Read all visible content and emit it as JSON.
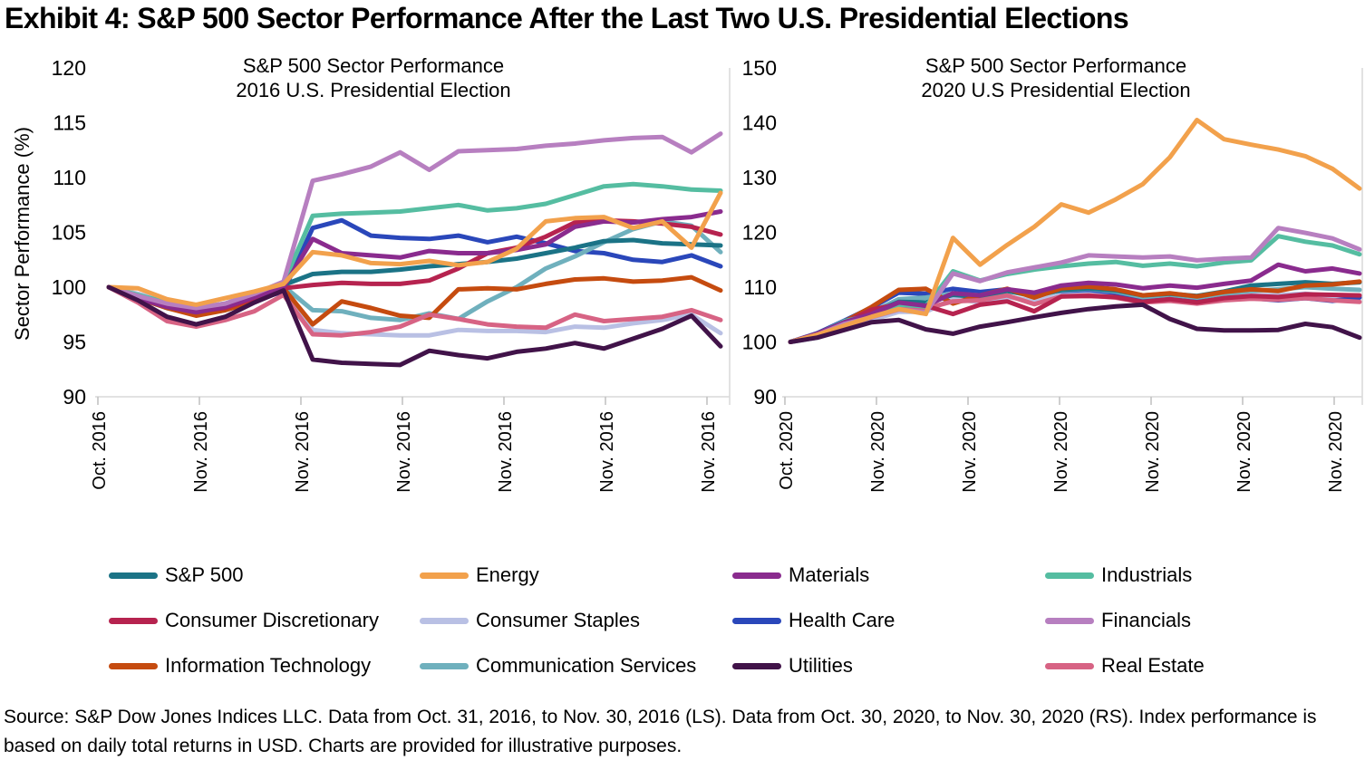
{
  "page_title": "Exhibit 4: S&P 500 Sector Performance After the Last Two U.S. Presidential Elections",
  "y_axis_label": "Sector Performance (%)",
  "source_note": "Source: S&P Dow Jones Indices LLC. Data from Oct. 31, 2016, to Nov. 30, 2016 (LS). Data from Oct. 30, 2020, to Nov. 30, 2020 (RS). Index performance is based on daily total returns in USD. Charts are provided for illustrative purposes.",
  "colors": {
    "sp500": "#1b7386",
    "energy": "#f2a14c",
    "materials": "#8a2b8e",
    "industrials": "#55bda1",
    "consumer_discretionary": "#b6234f",
    "consumer_staples": "#b9c0e4",
    "health_care": "#2a47ba",
    "financials": "#b77fc0",
    "information_technology": "#c54b0f",
    "communication_services": "#6fb0bd",
    "utilities": "#411349",
    "real_estate": "#d76384"
  },
  "legend": {
    "items": [
      {
        "key": "sp500",
        "label": "S&P 500"
      },
      {
        "key": "energy",
        "label": "Energy"
      },
      {
        "key": "materials",
        "label": "Materials"
      },
      {
        "key": "industrials",
        "label": "Industrials"
      },
      {
        "key": "consumer_discretionary",
        "label": "Consumer Discretionary"
      },
      {
        "key": "consumer_staples",
        "label": "Consumer Staples"
      },
      {
        "key": "health_care",
        "label": "Health Care"
      },
      {
        "key": "financials",
        "label": "Financials"
      },
      {
        "key": "information_technology",
        "label": "Information Technology"
      },
      {
        "key": "communication_services",
        "label": "Communication Services"
      },
      {
        "key": "utilities",
        "label": "Utilities"
      },
      {
        "key": "real_estate",
        "label": "Real Estate"
      }
    ]
  },
  "chart_data": [
    {
      "type": "line",
      "title_line1": "S&P 500 Sector Performance",
      "title_line2": "2016 U.S. Presidential Election",
      "ylim": [
        90,
        120
      ],
      "yticks": [
        120,
        115,
        110,
        105,
        100,
        95,
        90
      ],
      "grid": false,
      "legend_position": "bottom",
      "x_tick_labels": [
        "Oct. 2016",
        "Nov. 2016",
        "Nov. 2016",
        "Nov. 2016",
        "Nov. 2016",
        "Nov. 2016",
        "Nov. 2016"
      ],
      "series": [
        {
          "key": "sp500",
          "name": "S&P 500",
          "values": [
            100,
            99.2,
            98.6,
            98.2,
            98.4,
            99.5,
            100.2,
            101.2,
            101.4,
            101.4,
            101.6,
            101.9,
            102.1,
            102.3,
            102.6,
            103.1,
            103.6,
            104.2,
            104.3,
            104.0,
            103.9,
            103.8
          ]
        },
        {
          "key": "energy",
          "name": "Energy",
          "values": [
            100,
            99.9,
            98.9,
            98.4,
            99.0,
            99.6,
            100.3,
            103.2,
            102.9,
            102.2,
            102.1,
            102.4,
            102.0,
            102.3,
            103.5,
            106.0,
            106.3,
            106.4,
            105.4,
            106.0,
            103.6,
            108.6
          ]
        },
        {
          "key": "materials",
          "name": "Materials",
          "values": [
            100,
            99.0,
            98.2,
            97.7,
            98.2,
            99.1,
            100.0,
            104.4,
            103.1,
            102.9,
            102.7,
            103.3,
            103.1,
            103.1,
            103.4,
            103.9,
            105.5,
            106.0,
            105.9,
            106.2,
            106.4,
            106.9
          ]
        },
        {
          "key": "industrials",
          "name": "Industrials",
          "values": [
            100,
            99.3,
            98.6,
            98.1,
            98.5,
            99.4,
            100.4,
            106.5,
            106.7,
            106.8,
            106.9,
            107.2,
            107.5,
            107.0,
            107.2,
            107.6,
            108.4,
            109.2,
            109.4,
            109.2,
            108.9,
            108.8
          ]
        },
        {
          "key": "consumer_discretionary",
          "name": "Consumer Discretionary",
          "values": [
            100,
            99.1,
            98.3,
            97.8,
            98.1,
            99.0,
            99.9,
            100.2,
            100.4,
            100.3,
            100.3,
            100.6,
            101.7,
            103.1,
            103.6,
            104.6,
            105.9,
            106.1,
            106.0,
            105.8,
            105.5,
            104.8
          ]
        },
        {
          "key": "consumer_staples",
          "name": "Consumer Staples",
          "values": [
            100,
            99.4,
            98.7,
            98.0,
            98.4,
            99.2,
            99.8,
            96.1,
            95.8,
            95.7,
            95.6,
            95.6,
            96.1,
            96.0,
            96.0,
            95.9,
            96.4,
            96.3,
            96.7,
            97.0,
            97.5,
            95.8
          ]
        },
        {
          "key": "health_care",
          "name": "Health Care",
          "values": [
            100,
            99.0,
            98.1,
            97.6,
            98.0,
            98.8,
            99.6,
            105.4,
            106.1,
            104.7,
            104.5,
            104.4,
            104.7,
            104.1,
            104.6,
            104.0,
            103.3,
            103.1,
            102.5,
            102.3,
            102.9,
            101.9
          ]
        },
        {
          "key": "financials",
          "name": "Financials",
          "values": [
            100,
            99.2,
            98.5,
            98.1,
            98.5,
            99.4,
            100.5,
            109.7,
            110.3,
            111.0,
            112.3,
            110.7,
            112.4,
            112.5,
            112.6,
            112.9,
            113.1,
            113.4,
            113.6,
            113.7,
            112.3,
            114.0
          ]
        },
        {
          "key": "information_technology",
          "name": "Information Technology",
          "values": [
            100,
            99.0,
            98.1,
            97.4,
            97.9,
            98.7,
            99.9,
            96.6,
            98.7,
            98.1,
            97.4,
            97.2,
            99.8,
            99.9,
            99.8,
            100.3,
            100.7,
            100.8,
            100.5,
            100.6,
            100.9,
            99.7
          ]
        },
        {
          "key": "communication_services",
          "name": "Communication Services",
          "values": [
            100,
            99.1,
            98.1,
            97.5,
            97.9,
            99.0,
            100.1,
            97.9,
            97.8,
            97.2,
            97.0,
            97.6,
            97.1,
            98.7,
            100.0,
            101.7,
            102.8,
            104.1,
            105.3,
            106.0,
            105.6,
            103.2
          ]
        },
        {
          "key": "utilities",
          "name": "Utilities",
          "values": [
            100,
            98.8,
            97.3,
            96.6,
            97.3,
            98.6,
            99.7,
            93.4,
            93.1,
            93.0,
            92.9,
            94.2,
            93.8,
            93.5,
            94.1,
            94.4,
            94.9,
            94.4,
            95.3,
            96.2,
            97.4,
            94.6
          ]
        },
        {
          "key": "real_estate",
          "name": "Real Estate",
          "values": [
            100,
            98.6,
            96.9,
            96.4,
            97.0,
            97.8,
            99.3,
            95.7,
            95.6,
            95.9,
            96.4,
            97.5,
            97.1,
            96.6,
            96.4,
            96.3,
            97.5,
            96.9,
            97.1,
            97.3,
            97.9,
            97.0
          ]
        }
      ]
    },
    {
      "type": "line",
      "title_line1": "S&P 500 Sector Performance",
      "title_line2": "2020 U.S Presidential Election",
      "ylim": [
        90,
        150
      ],
      "yticks": [
        150,
        140,
        130,
        120,
        110,
        100,
        90
      ],
      "grid": false,
      "legend_position": "bottom",
      "x_tick_labels": [
        "Oct. 2020",
        "Nov. 2020",
        "Nov. 2020",
        "Nov. 2020",
        "Nov. 2020",
        "Nov. 2020",
        "Nov. 2020"
      ],
      "series": [
        {
          "key": "sp500",
          "name": "S&P 500",
          "values": [
            100,
            101.2,
            103.1,
            105.3,
            107.3,
            107.2,
            108.6,
            108.2,
            109.3,
            108.4,
            109.5,
            109.8,
            109.4,
            108.5,
            108.8,
            108.4,
            109.2,
            110.3,
            110.6,
            110.9,
            110.6,
            110.9
          ]
        },
        {
          "key": "energy",
          "name": "Energy",
          "values": [
            100,
            101.3,
            103.0,
            104.6,
            106.0,
            105.1,
            119.0,
            114.1,
            117.7,
            121.0,
            125.1,
            123.6,
            126.0,
            128.8,
            133.7,
            140.5,
            137.0,
            136.0,
            135.1,
            133.9,
            131.6,
            128.0
          ]
        },
        {
          "key": "materials",
          "name": "Materials",
          "values": [
            100,
            101.5,
            103.6,
            105.1,
            107.2,
            106.6,
            108.9,
            108.5,
            109.6,
            109.0,
            110.3,
            110.8,
            110.5,
            109.8,
            110.3,
            109.9,
            110.6,
            111.2,
            114.1,
            112.9,
            113.4,
            112.5
          ]
        },
        {
          "key": "industrials",
          "name": "Industrials",
          "values": [
            100,
            101.4,
            103.8,
            104.9,
            106.8,
            106.5,
            112.9,
            111.2,
            112.4,
            113.2,
            113.8,
            114.3,
            114.6,
            113.9,
            114.3,
            113.8,
            114.5,
            114.9,
            119.3,
            118.3,
            117.6,
            116.0
          ]
        },
        {
          "key": "consumer_discretionary",
          "name": "Consumer Discretionary",
          "values": [
            100,
            101.4,
            103.5,
            105.9,
            106.9,
            106.6,
            105.1,
            106.8,
            107.4,
            105.6,
            108.3,
            108.4,
            108.2,
            107.3,
            107.8,
            107.2,
            108.0,
            108.4,
            108.2,
            108.7,
            108.6,
            108.5
          ]
        },
        {
          "key": "consumer_staples",
          "name": "Consumer Staples",
          "values": [
            100,
            100.9,
            102.3,
            104.0,
            105.5,
            105.5,
            107.9,
            107.2,
            108.2,
            107.5,
            108.5,
            108.7,
            108.3,
            107.8,
            108.1,
            107.8,
            108.2,
            108.5,
            108.6,
            108.8,
            108.4,
            108.2
          ]
        },
        {
          "key": "health_care",
          "name": "Health Care",
          "values": [
            100,
            101.6,
            103.9,
            106.3,
            109.0,
            108.8,
            109.7,
            109.1,
            109.6,
            108.7,
            109.3,
            109.5,
            109.0,
            107.8,
            108.2,
            107.7,
            108.2,
            108.0,
            107.6,
            108.0,
            107.5,
            108.1
          ]
        },
        {
          "key": "financials",
          "name": "Financials",
          "values": [
            100,
            101.3,
            103.3,
            104.5,
            105.9,
            105.4,
            112.5,
            111.1,
            112.7,
            113.6,
            114.5,
            115.8,
            115.6,
            115.4,
            115.6,
            114.9,
            115.2,
            115.4,
            120.8,
            119.9,
            118.9,
            116.9
          ]
        },
        {
          "key": "information_technology",
          "name": "Information Technology",
          "values": [
            100,
            101.5,
            103.7,
            106.4,
            109.5,
            109.7,
            107.0,
            108.5,
            109.7,
            108.1,
            109.8,
            110.1,
            109.6,
            108.5,
            108.9,
            108.3,
            109.1,
            109.6,
            109.3,
            110.3,
            110.5,
            111.0
          ]
        },
        {
          "key": "communication_services",
          "name": "Communication Services",
          "values": [
            100,
            100.8,
            102.6,
            105.4,
            107.8,
            108.1,
            108.8,
            108.5,
            109.3,
            108.3,
            109.4,
            109.7,
            109.2,
            108.2,
            108.6,
            108.1,
            108.8,
            109.3,
            109.6,
            110.0,
            109.7,
            109.5
          ]
        },
        {
          "key": "utilities",
          "name": "Utilities",
          "values": [
            100,
            100.8,
            102.2,
            103.6,
            104.0,
            102.3,
            101.5,
            102.8,
            103.6,
            104.5,
            105.3,
            106.0,
            106.5,
            106.8,
            104.2,
            102.4,
            102.1,
            102.1,
            102.2,
            103.3,
            102.7,
            100.8
          ]
        },
        {
          "key": "real_estate",
          "name": "Real Estate",
          "values": [
            100,
            101.1,
            102.9,
            104.6,
            106.3,
            106.1,
            107.4,
            107.6,
            108.5,
            106.9,
            108.3,
            108.5,
            108.1,
            107.2,
            107.5,
            107.0,
            107.6,
            107.9,
            107.7,
            108.0,
            107.6,
            107.3
          ]
        }
      ]
    }
  ]
}
